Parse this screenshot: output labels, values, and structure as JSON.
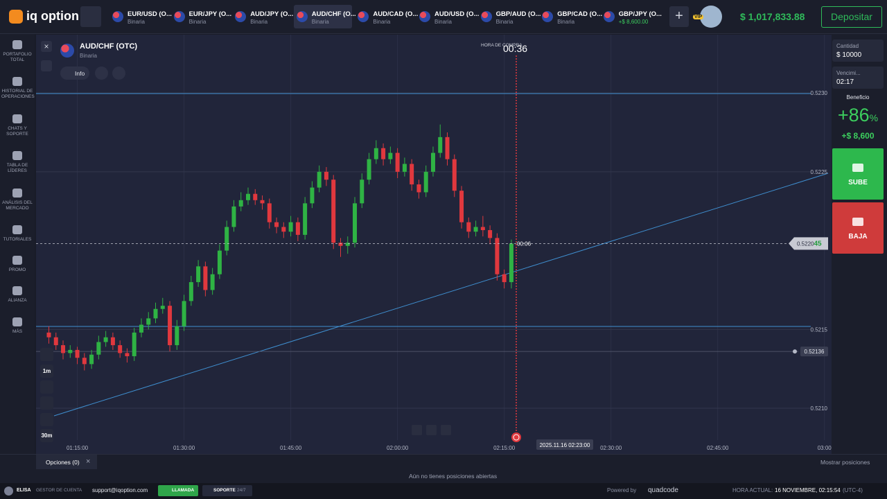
{
  "header": {
    "logo": "iq option",
    "tabs": [
      {
        "name": "EUR/USD (O...",
        "sub": "Binaria"
      },
      {
        "name": "EUR/JPY (O...",
        "sub": "Binaria"
      },
      {
        "name": "AUD/JPY (O...",
        "sub": "Binaria"
      },
      {
        "name": "AUD/CHF (O...",
        "sub": "Binaria"
      },
      {
        "name": "AUD/CAD (O...",
        "sub": "Binaria"
      },
      {
        "name": "AUD/USD (O...",
        "sub": "Binaria"
      },
      {
        "name": "GBP/AUD (O...",
        "sub": "Binaria"
      },
      {
        "name": "GBP/CAD (O...",
        "sub": "Binaria"
      },
      {
        "name": "GBP/JPY (O...",
        "sub": "+$ 8,600.00"
      }
    ],
    "vip": "VIP",
    "balance": "$ 1,017,833.88",
    "deposit": "Depositar"
  },
  "sidebar": [
    "PORTAFOLIO TOTAL",
    "HISTORIAL DE OPERACIONES",
    "CHATS Y SOPORTE",
    "TABLA DE LÍDERES",
    "ANÁLISIS DEL MERCADO",
    "TUTORIALES",
    "PROMO",
    "ALIANZA",
    "MÁS"
  ],
  "asset": {
    "name": "AUD/CHF (OTC)",
    "sub": "Binaria",
    "info": "Info"
  },
  "timer": {
    "label": "HORA DE COMPRA",
    "value": "00:36"
  },
  "chart_data": {
    "type": "candlestick",
    "up_color": "#2fb344",
    "down_color": "#e0383e",
    "grid": true,
    "x": [
      71,
      72,
      73,
      74,
      75,
      76,
      77,
      78,
      79,
      80,
      81,
      82,
      83,
      84,
      85,
      86,
      87,
      88,
      89,
      90,
      91,
      92,
      93,
      94,
      95,
      96,
      97,
      98,
      99,
      100,
      101,
      102,
      103,
      104,
      105,
      106,
      107,
      108,
      109,
      110,
      111,
      112,
      113,
      114,
      115,
      116,
      117,
      118,
      119,
      120,
      121,
      122,
      123,
      124,
      125,
      126,
      127,
      128,
      129,
      130,
      131,
      132,
      133,
      134,
      135,
      136
    ],
    "open": [
      0.52148,
      0.52145,
      0.5214,
      0.52135,
      0.52137,
      0.52132,
      0.52128,
      0.52134,
      0.52142,
      0.52145,
      0.5214,
      0.52135,
      0.52133,
      0.52148,
      0.52153,
      0.52157,
      0.52163,
      0.52165,
      0.5214,
      0.52152,
      0.52168,
      0.5218,
      0.5219,
      0.52175,
      0.52185,
      0.522,
      0.52215,
      0.52228,
      0.52232,
      0.52236,
      0.52232,
      0.5223,
      0.52218,
      0.52215,
      0.52212,
      0.52218,
      0.5221,
      0.5223,
      0.5224,
      0.5225,
      0.52245,
      0.52205,
      0.52203,
      0.52205,
      0.5223,
      0.52245,
      0.52258,
      0.52265,
      0.52258,
      0.52262,
      0.5225,
      0.52255,
      0.52242,
      0.52237,
      0.5225,
      0.52262,
      0.52272,
      0.52258,
      0.52238,
      0.52218,
      0.52212,
      0.52215,
      0.52213,
      0.52208,
      0.52185,
      0.5218
    ],
    "high": [
      0.52152,
      0.52148,
      0.52143,
      0.5214,
      0.52139,
      0.52135,
      0.52137,
      0.52146,
      0.52149,
      0.52148,
      0.52143,
      0.52138,
      0.52151,
      0.52157,
      0.52161,
      0.52167,
      0.5217,
      0.52168,
      0.52156,
      0.52172,
      0.52184,
      0.52194,
      0.52193,
      0.52189,
      0.52204,
      0.52219,
      0.52232,
      0.52237,
      0.5224,
      0.52239,
      0.52235,
      0.52233,
      0.52221,
      0.52218,
      0.52222,
      0.52221,
      0.52234,
      0.52244,
      0.52254,
      0.52253,
      0.52248,
      0.52208,
      0.52209,
      0.52234,
      0.52249,
      0.52262,
      0.5227,
      0.52268,
      0.52266,
      0.52265,
      0.52259,
      0.52258,
      0.52245,
      0.52254,
      0.52266,
      0.5228,
      0.52275,
      0.52261,
      0.52241,
      0.52221,
      0.52219,
      0.52222,
      0.52216,
      0.52211,
      0.52188,
      0.52207
    ],
    "low": [
      0.52141,
      0.52137,
      0.52131,
      0.52132,
      0.52128,
      0.52124,
      0.52125,
      0.52131,
      0.52139,
      0.52137,
      0.52132,
      0.52129,
      0.5213,
      0.52145,
      0.5215,
      0.52154,
      0.5216,
      0.52136,
      0.52137,
      0.52149,
      0.52165,
      0.52177,
      0.52171,
      0.52172,
      0.52182,
      0.52197,
      0.52212,
      0.52225,
      0.52229,
      0.52229,
      0.52226,
      0.52214,
      0.52211,
      0.52208,
      0.52209,
      0.52206,
      0.52207,
      0.52227,
      0.52237,
      0.52241,
      0.52201,
      0.52196,
      0.52198,
      0.52202,
      0.52227,
      0.52242,
      0.52255,
      0.52254,
      0.52255,
      0.52246,
      0.52247,
      0.52238,
      0.52233,
      0.52234,
      0.52247,
      0.52259,
      0.52254,
      0.52234,
      0.52214,
      0.52208,
      0.52209,
      0.52209,
      0.52204,
      0.52181,
      0.52176,
      0.52176
    ],
    "close": [
      0.52145,
      0.5214,
      0.52135,
      0.52137,
      0.52132,
      0.52128,
      0.52134,
      0.52142,
      0.52145,
      0.5214,
      0.52135,
      0.52133,
      0.52148,
      0.52153,
      0.52157,
      0.52163,
      0.52165,
      0.5214,
      0.52152,
      0.52168,
      0.5218,
      0.5219,
      0.52175,
      0.52185,
      0.522,
      0.52215,
      0.52228,
      0.52232,
      0.52236,
      0.52232,
      0.5223,
      0.52218,
      0.52215,
      0.52212,
      0.52218,
      0.5221,
      0.5223,
      0.5224,
      0.5225,
      0.52245,
      0.52205,
      0.52203,
      0.52205,
      0.5223,
      0.52245,
      0.52258,
      0.52265,
      0.52258,
      0.52262,
      0.5225,
      0.52255,
      0.52242,
      0.52237,
      0.5225,
      0.52262,
      0.52272,
      0.52258,
      0.52238,
      0.52218,
      0.52212,
      0.52215,
      0.52213,
      0.52208,
      0.52185,
      0.5218,
      0.522045
    ],
    "xlim": [
      69.2,
      181
    ],
    "xticks": [
      {
        "value": 75,
        "label": "01:15:00"
      },
      {
        "value": 90,
        "label": "01:30:00"
      },
      {
        "value": 105,
        "label": "01:45:00"
      },
      {
        "value": 120,
        "label": "02:00:00"
      },
      {
        "value": 135,
        "label": "02:15:00"
      },
      {
        "value": 150,
        "label": "02:30:00"
      },
      {
        "value": 165,
        "label": "02:45:00"
      },
      {
        "value": 180,
        "label": "03:00"
      }
    ],
    "ylim": [
      0.52071,
      0.52337
    ],
    "yticks": [
      {
        "value": 0.523,
        "label": "0.5230"
      },
      0.5225,
      0.5215,
      {
        "value": 0.521,
        "label": "0.5210"
      }
    ],
    "alert_level": 0.52136,
    "countdown": "00:06",
    "date_tag": "2025.11.16 02:23:00",
    "price_tag": {
      "main": "0.5220",
      "tail": "45"
    }
  },
  "toolbar": {
    "candle": "1m",
    "period": "30m"
  },
  "trade_panel": {
    "amount_label": "Cantidad",
    "amount": "$ 10000",
    "expiry_label": "Vencimi...",
    "expiry": "02:17",
    "profit_label": "Beneficio",
    "profit_pct": "+86",
    "pct_sign": "%",
    "profit": "+$ 8,600",
    "up": "SUBE",
    "down": "BAJA"
  },
  "positions": {
    "tab": "Opciones (0)",
    "show": "Mostrar posiciones",
    "empty": "Aún no tienes posiciones abiertas"
  },
  "footer": {
    "user": "ELISA",
    "manager": "GESTOR DE CUENTA",
    "email": "support@iqoption.com",
    "call": "LLAMADA",
    "support": "SOPORTE",
    "support_hours": "24/7",
    "powered": "Powered by",
    "brand": "quadcode",
    "time_label": "HORA ACTUAL:",
    "time": "16 NOVIEMBRE, 02:15:54",
    "tz": "(UTC-4)"
  }
}
